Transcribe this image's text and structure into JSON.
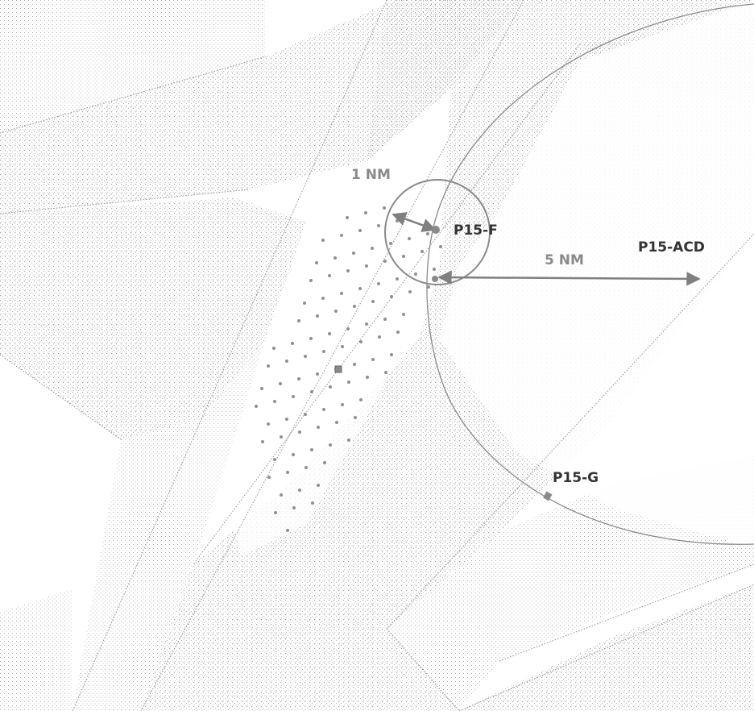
{
  "labels": {
    "p15_f": "P15-F",
    "p15_acd": "P15-ACD",
    "p15_g": "P15-G",
    "radius_small": "1 NM",
    "radius_large": "5 NM"
  },
  "colors": {
    "background": "#ffffff",
    "stipple": "#9a9a9a",
    "boundary": "#7a7a7a",
    "dot": "#909090",
    "arrow": "#7f7f7f",
    "label_dark": "#333333",
    "label_grey": "#8a8a8a"
  },
  "marker_names": [
    "square-marker",
    "tick-marker"
  ]
}
